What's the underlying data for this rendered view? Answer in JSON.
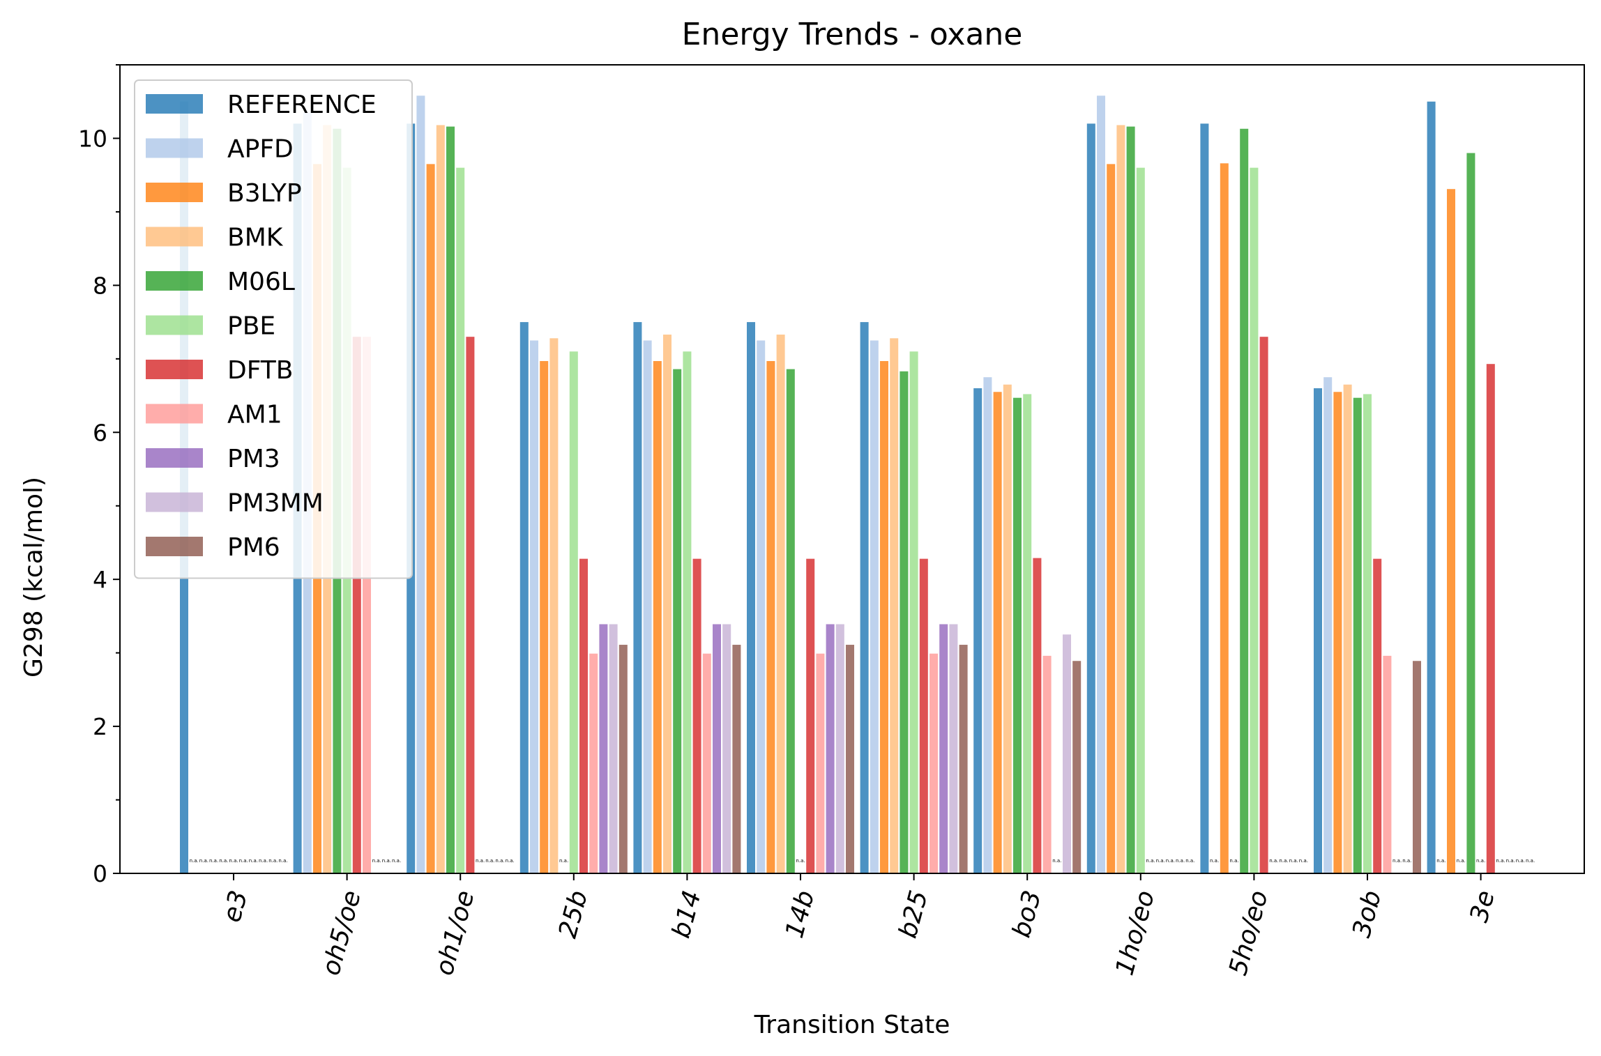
{
  "chart_data": {
    "type": "bar",
    "title": "Energy Trends - oxane",
    "xlabel": "Transition State",
    "ylabel": "G298 (kcal/mol)",
    "ylim": [
      0,
      11
    ],
    "yticks": [
      0,
      2,
      4,
      6,
      8,
      10
    ],
    "grid": false,
    "legend_position": "upper-left",
    "missing_label": "n.a.",
    "categories": [
      "e3",
      "oh5/oe",
      "oh1/oe",
      "25b",
      "b14",
      "14b",
      "b25",
      "bo3",
      "1ho/eo",
      "5ho/eo",
      "3ob",
      "3e"
    ],
    "series": [
      {
        "name": "REFERENCE",
        "color": "#1f77b4",
        "values": [
          10.5,
          10.2,
          10.2,
          7.5,
          7.5,
          7.5,
          7.5,
          6.6,
          10.2,
          10.2,
          6.6,
          10.5
        ]
      },
      {
        "name": "APFD",
        "color": "#aec7e8",
        "values": [
          null,
          10.35,
          10.58,
          7.25,
          7.25,
          7.25,
          7.25,
          6.75,
          10.58,
          null,
          6.75,
          null
        ]
      },
      {
        "name": "B3LYP",
        "color": "#ff7f0e",
        "values": [
          null,
          9.65,
          9.65,
          6.97,
          6.97,
          6.97,
          6.97,
          6.55,
          9.65,
          9.66,
          6.55,
          9.31
        ]
      },
      {
        "name": "BMK",
        "color": "#ffbb78",
        "values": [
          null,
          10.18,
          10.18,
          7.28,
          7.33,
          7.33,
          7.28,
          6.65,
          10.18,
          null,
          6.65,
          null
        ]
      },
      {
        "name": "M06L",
        "color": "#2ca02c",
        "values": [
          null,
          10.13,
          10.16,
          null,
          6.86,
          6.86,
          6.83,
          6.47,
          10.16,
          10.13,
          6.47,
          9.8
        ]
      },
      {
        "name": "PBE",
        "color": "#98df8a",
        "values": [
          null,
          9.6,
          9.6,
          7.1,
          7.1,
          null,
          7.1,
          6.52,
          9.6,
          9.6,
          6.52,
          null
        ]
      },
      {
        "name": "DFTB",
        "color": "#d62728",
        "values": [
          null,
          7.3,
          7.3,
          4.28,
          4.28,
          4.28,
          4.28,
          4.29,
          null,
          7.3,
          4.28,
          6.93
        ]
      },
      {
        "name": "AM1",
        "color": "#ff9896",
        "values": [
          null,
          7.3,
          null,
          2.99,
          2.99,
          2.99,
          2.99,
          2.96,
          null,
          null,
          2.96,
          null
        ]
      },
      {
        "name": "PM3",
        "color": "#9467bd",
        "values": [
          null,
          null,
          null,
          3.39,
          3.39,
          3.39,
          3.39,
          null,
          null,
          null,
          null,
          null
        ]
      },
      {
        "name": "PM3MM",
        "color": "#c5b0d5",
        "values": [
          null,
          null,
          null,
          3.39,
          3.39,
          3.39,
          3.39,
          3.25,
          null,
          null,
          null,
          null
        ]
      },
      {
        "name": "PM6",
        "color": "#8c564b",
        "values": [
          null,
          null,
          null,
          3.11,
          3.11,
          3.11,
          3.11,
          2.89,
          null,
          null,
          2.89,
          null
        ]
      }
    ]
  }
}
